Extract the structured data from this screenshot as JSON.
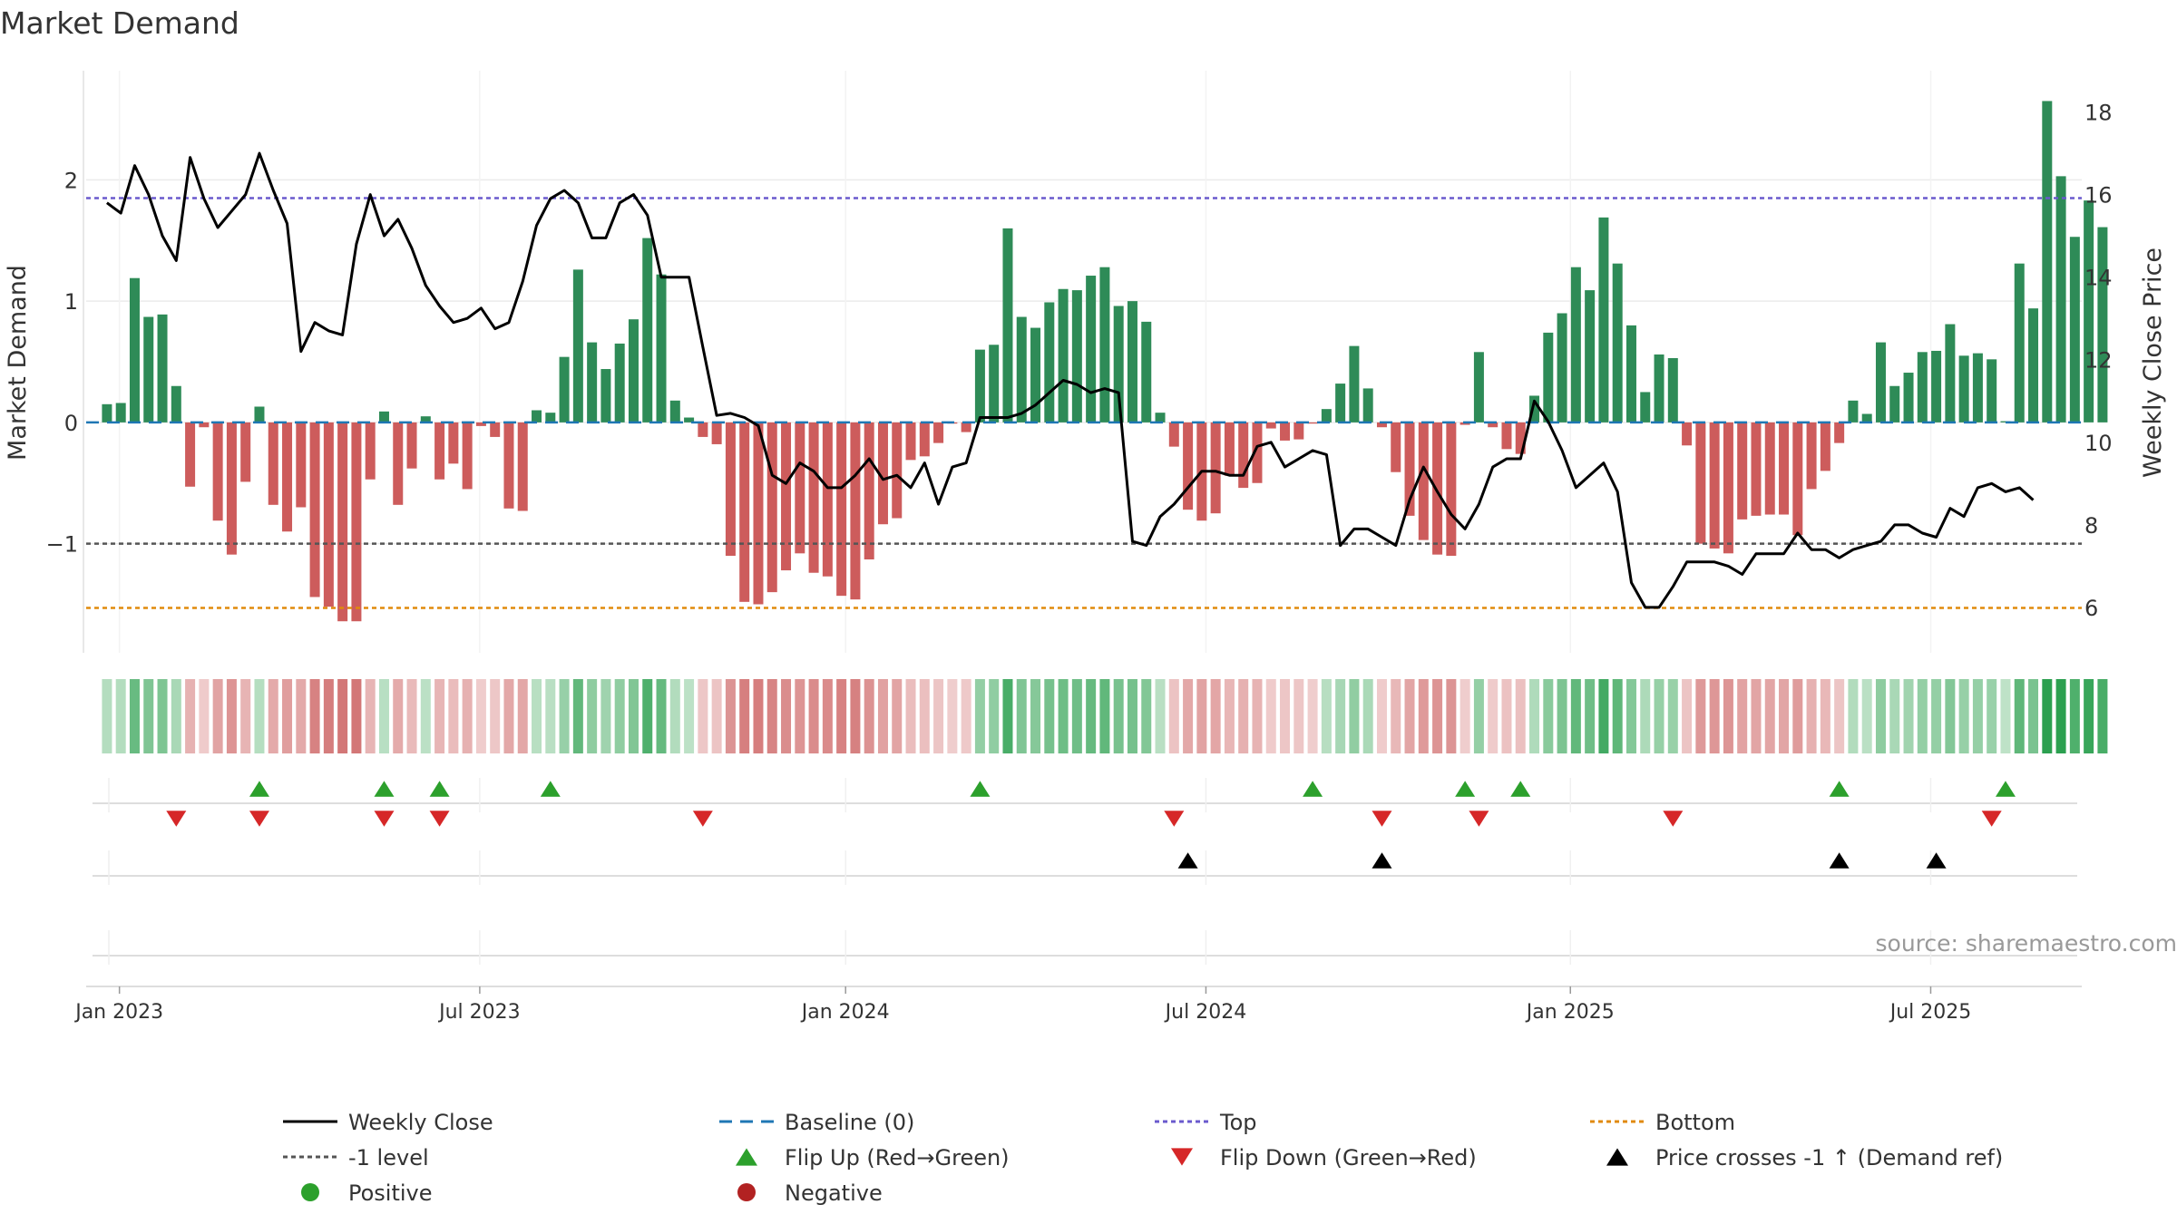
{
  "chart_data": {
    "type": "bar",
    "title": "Market Demand",
    "ylabel_left": "Market Demand",
    "ylabel_right": "Weekly Close Price",
    "source": "source: sharemaestro.com",
    "ylim_left": [
      -1.9,
      2.9
    ],
    "ylim_right": [
      4.9,
      19.0
    ],
    "yticks_left": [
      {
        "v": 2,
        "label": "2"
      },
      {
        "v": 1,
        "label": "1"
      },
      {
        "v": 0,
        "label": "0"
      },
      {
        "v": -1,
        "label": "−1"
      }
    ],
    "yticks_right": [
      {
        "v": 18,
        "label": "18"
      },
      {
        "v": 16,
        "label": "16"
      },
      {
        "v": 14,
        "label": "14"
      },
      {
        "v": 12,
        "label": "12"
      },
      {
        "v": 10,
        "label": "10"
      },
      {
        "v": 8,
        "label": "8"
      },
      {
        "v": 6,
        "label": "6"
      }
    ],
    "x_range_weeks": [
      -1.5,
      142.5
    ],
    "xticks": [
      {
        "week": 0.9,
        "label": "Jan 2023"
      },
      {
        "week": 26.9,
        "label": "Jul 2023"
      },
      {
        "week": 53.3,
        "label": "Jan 2024"
      },
      {
        "week": 79.3,
        "label": "Jul 2024"
      },
      {
        "week": 105.6,
        "label": "Jan 2025"
      },
      {
        "week": 131.6,
        "label": "Jul 2025"
      }
    ],
    "reference_lines": {
      "baseline": 0,
      "top": 1.85,
      "bottom": -1.53,
      "level_minus1": -1
    },
    "series": [
      {
        "name": "Market Demand",
        "values": [
          0.15,
          0.16,
          1.19,
          0.87,
          0.89,
          0.3,
          -0.53,
          -0.04,
          -0.81,
          -1.09,
          -0.49,
          0.13,
          -0.68,
          -0.9,
          -0.7,
          -1.44,
          -1.52,
          -1.64,
          -1.64,
          -0.47,
          0.09,
          -0.68,
          -0.38,
          0.05,
          -0.47,
          -0.34,
          -0.55,
          -0.03,
          -0.12,
          -0.71,
          -0.73,
          0.1,
          0.08,
          0.54,
          1.26,
          0.66,
          0.44,
          0.65,
          0.85,
          1.52,
          1.22,
          0.18,
          0.04,
          -0.12,
          -0.18,
          -1.1,
          -1.48,
          -1.5,
          -1.4,
          -1.22,
          -1.08,
          -1.24,
          -1.27,
          -1.43,
          -1.46,
          -1.13,
          -0.84,
          -0.79,
          -0.31,
          -0.28,
          -0.17,
          -0.01,
          -0.08,
          0.6,
          0.64,
          1.6,
          0.87,
          0.78,
          0.99,
          1.1,
          1.09,
          1.21,
          1.28,
          0.96,
          1.0,
          0.83,
          0.08,
          -0.2,
          -0.72,
          -0.81,
          -0.75,
          -0.44,
          -0.54,
          -0.5,
          -0.05,
          -0.15,
          -0.14,
          -0.01,
          0.11,
          0.32,
          0.63,
          0.28,
          -0.04,
          -0.41,
          -0.77,
          -0.97,
          -1.09,
          -1.1,
          -0.02,
          0.58,
          -0.04,
          -0.22,
          -0.26,
          0.22,
          0.74,
          0.9,
          1.28,
          1.09,
          1.69,
          1.31,
          0.8,
          0.25,
          0.56,
          0.53,
          -0.19,
          -1.0,
          -1.04,
          -1.08,
          -0.8,
          -0.77,
          -0.76,
          -0.76,
          -0.93,
          -0.55,
          -0.4,
          -0.17,
          0.18,
          0.07,
          0.66,
          0.3,
          0.41,
          0.58,
          0.59,
          0.81,
          0.55,
          0.57,
          0.52,
          0.01,
          1.31,
          0.94,
          2.65,
          2.03,
          1.53,
          1.83,
          1.61
        ]
      },
      {
        "name": "Weekly Close",
        "values": [
          15.8,
          15.55,
          16.7,
          16.0,
          15.0,
          14.4,
          16.9,
          15.9,
          15.2,
          15.6,
          16.0,
          17.0,
          16.1,
          15.3,
          12.2,
          12.9,
          12.7,
          12.6,
          14.8,
          16.0,
          15.0,
          15.4,
          14.7,
          13.8,
          13.3,
          12.9,
          13.0,
          13.25,
          12.75,
          12.9,
          13.9,
          15.25,
          15.9,
          16.1,
          15.8,
          14.95,
          14.95,
          15.8,
          16.0,
          15.5,
          14.0,
          14.0,
          14.0,
          12.3,
          10.65,
          10.7,
          10.6,
          10.4,
          9.2,
          9.0,
          9.5,
          9.3,
          8.9,
          8.9,
          9.2,
          9.6,
          9.1,
          9.2,
          8.9,
          9.5,
          8.5,
          9.4,
          9.5,
          10.6,
          10.6,
          10.6,
          10.7,
          10.9,
          11.2,
          11.5,
          11.4,
          11.2,
          11.3,
          11.2,
          7.6,
          7.5,
          8.2,
          8.5,
          8.9,
          9.3,
          9.3,
          9.2,
          9.2,
          9.9,
          10.0,
          9.4,
          9.6,
          9.8,
          9.7,
          7.5,
          7.9,
          7.9,
          7.7,
          7.5,
          8.6,
          9.4,
          8.8,
          8.25,
          7.9,
          8.5,
          9.4,
          9.6,
          9.6,
          11.0,
          10.5,
          9.8,
          8.9,
          9.2,
          9.5,
          8.8,
          6.6,
          6.0,
          6.0,
          6.5,
          7.1,
          7.1,
          7.1,
          7.0,
          6.8,
          7.3,
          7.3,
          7.3,
          7.8,
          7.4,
          7.4,
          7.2,
          7.4,
          7.5,
          7.6,
          8.0,
          8.0,
          7.8,
          7.7,
          8.4,
          8.2,
          8.9,
          9.0,
          8.8,
          8.9,
          8.6
        ]
      }
    ],
    "flip_up_weeks": [
      11,
      20,
      24,
      32,
      63,
      87,
      98,
      102,
      125,
      137
    ],
    "flip_down_weeks": [
      5,
      11,
      20,
      24,
      43,
      77,
      92,
      99,
      113,
      136
    ],
    "price_cross_weeks": [
      78,
      92,
      125,
      132
    ],
    "legend": [
      {
        "label": "Weekly Close",
        "symbol": "solid-line",
        "color": "#000000"
      },
      {
        "label": "Baseline (0)",
        "symbol": "dash-line",
        "color": "#1f77b4"
      },
      {
        "label": "Top",
        "symbol": "dot-line",
        "color": "#6a5acd"
      },
      {
        "label": "Bottom",
        "symbol": "dot-line",
        "color": "#e08a0c"
      },
      {
        "label": "-1 level",
        "symbol": "dot-line",
        "color": "#555555"
      },
      {
        "label": "Flip Up (Red→Green)",
        "symbol": "triangle-up",
        "color": "#2ca02c"
      },
      {
        "label": "Flip Down (Green→Red)",
        "symbol": "triangle-down",
        "color": "#d62728"
      },
      {
        "label": "Price crosses -1 ↑ (Demand ref)",
        "symbol": "triangle-up",
        "color": "#000000"
      },
      {
        "label": "Positive",
        "symbol": "circle",
        "color": "#2ca02c"
      },
      {
        "label": "Negative",
        "symbol": "circle",
        "color": "#b22222"
      }
    ]
  },
  "colors": {
    "positive_bar": "#2e8b57",
    "negative_bar": "#cd5c5c",
    "price_line": "#000000",
    "baseline": "#1f77b4",
    "top_line": "#6a5acd",
    "bottom_line": "#e08a0c",
    "minus1_line": "#555555",
    "flip_up": "#2ca02c",
    "flip_down": "#d62728",
    "cross": "#000000"
  }
}
